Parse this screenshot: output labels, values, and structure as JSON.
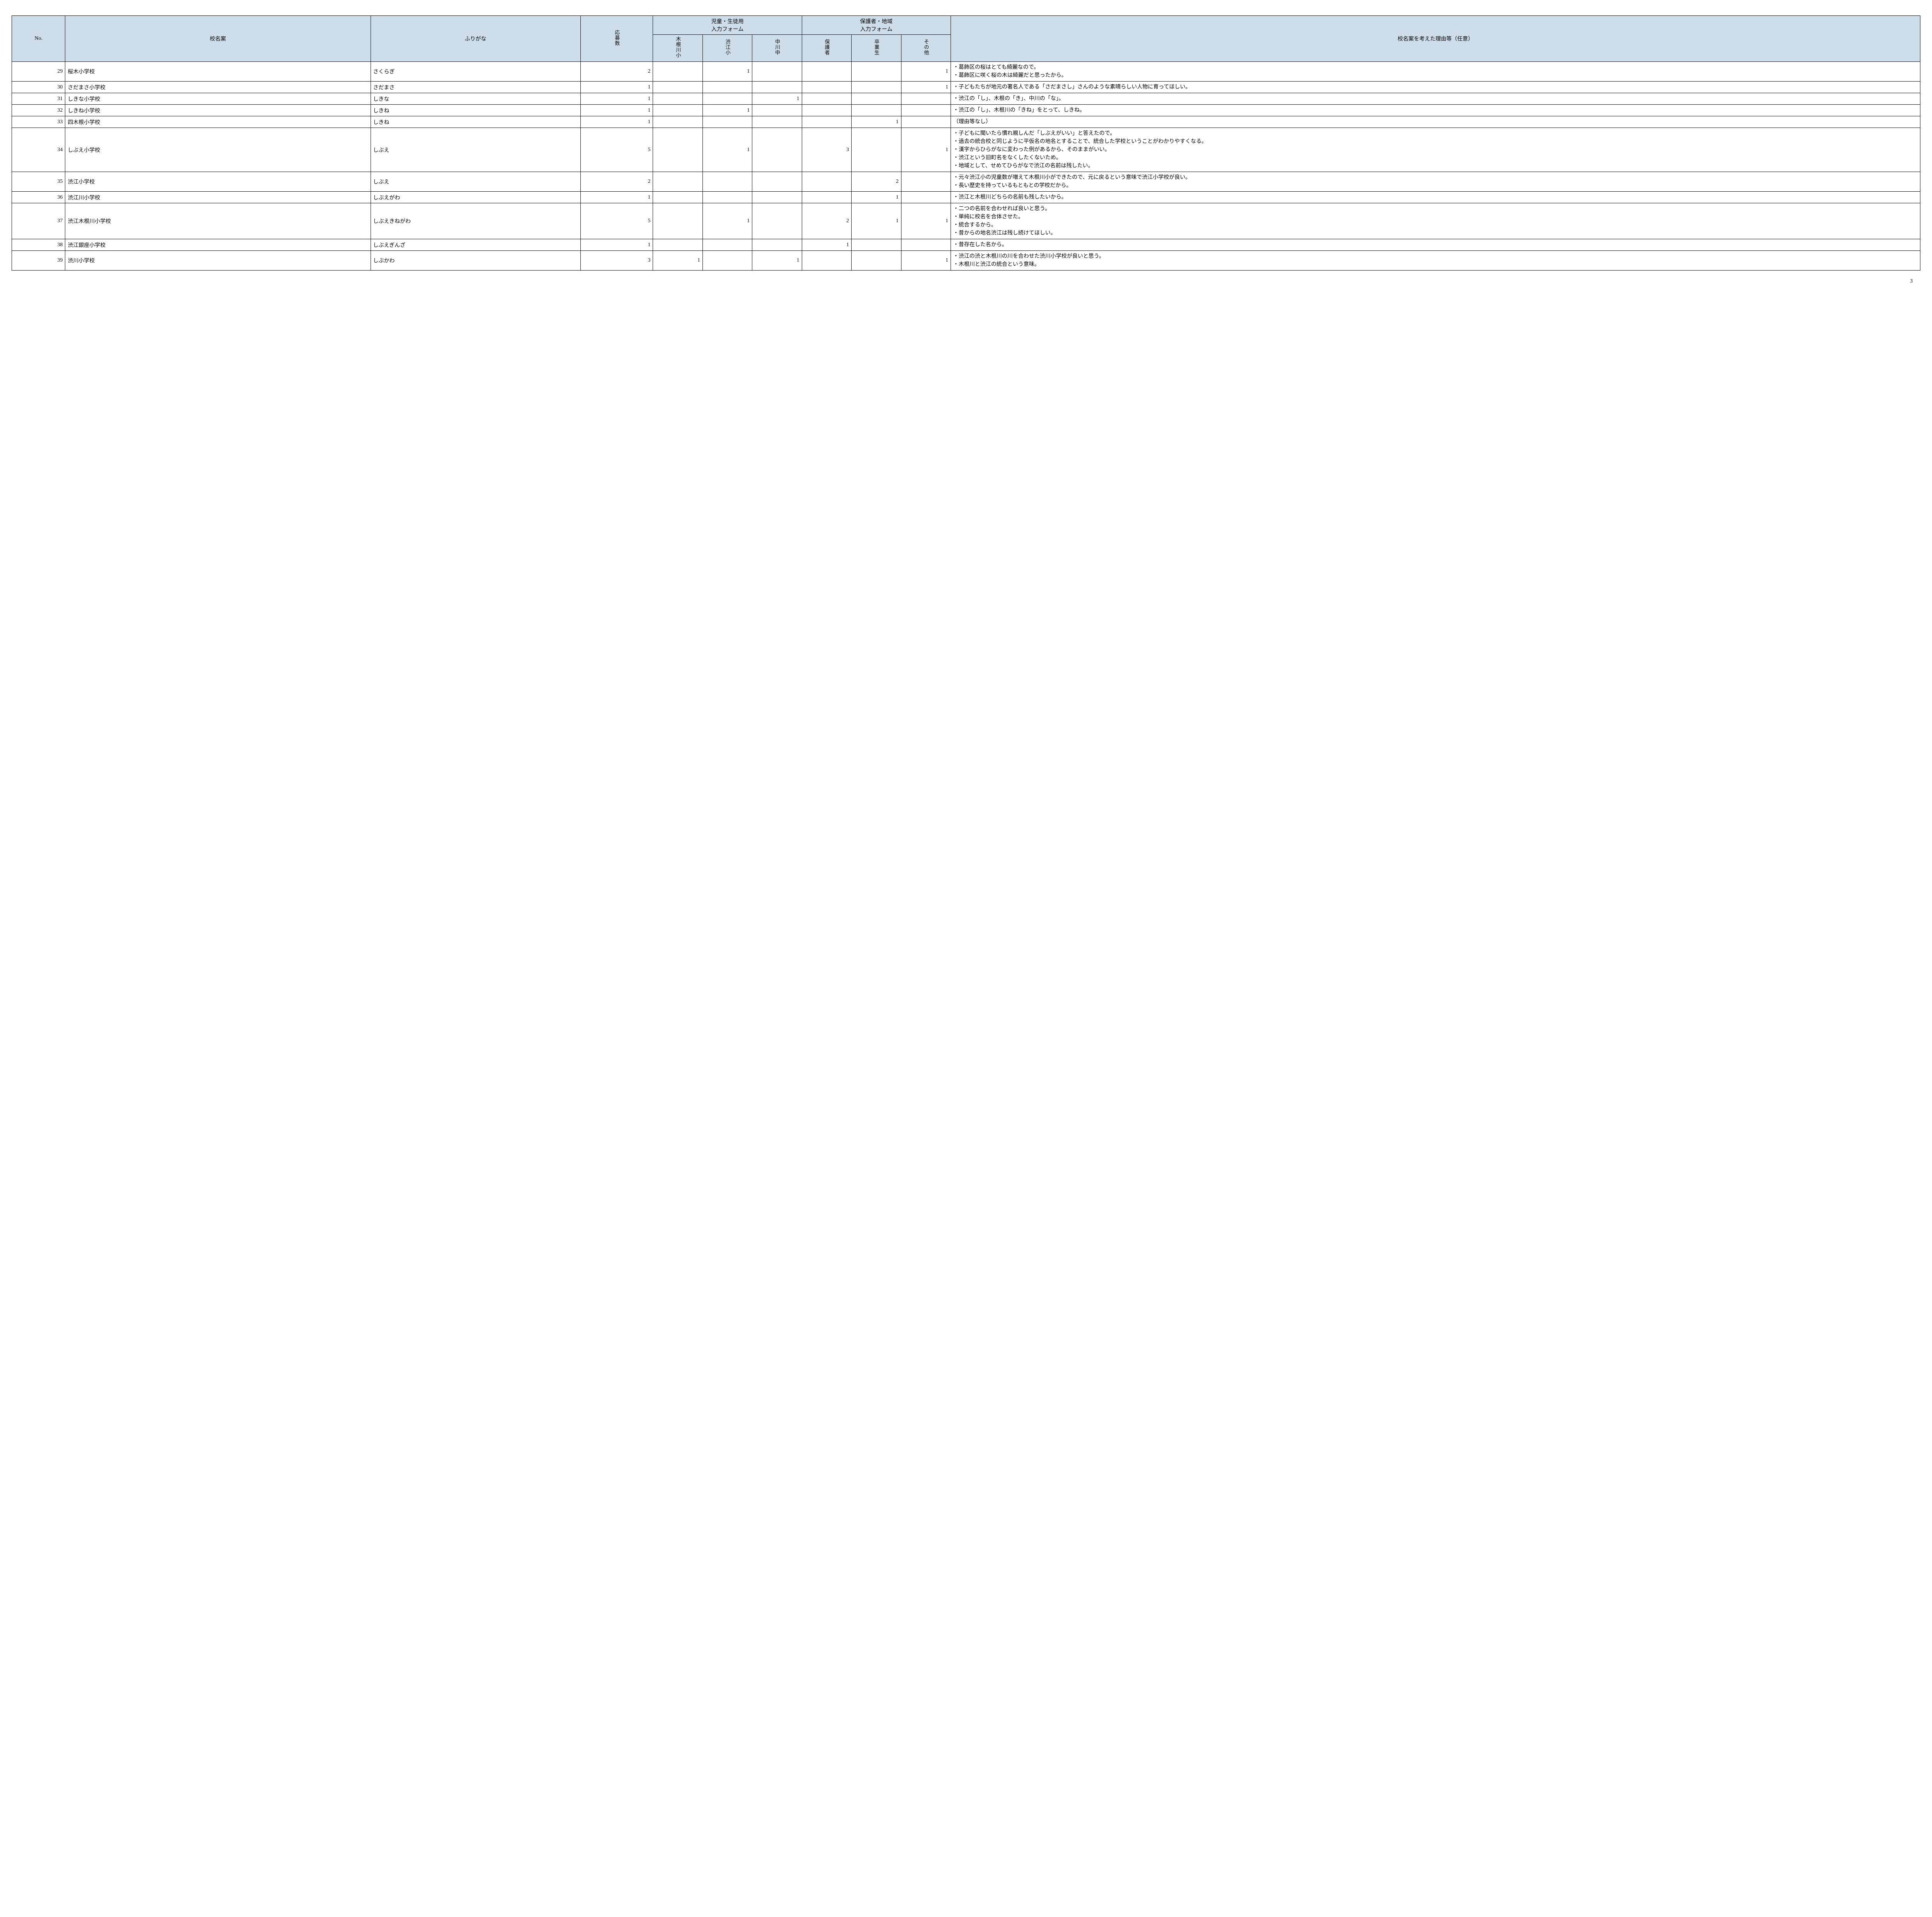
{
  "header": {
    "no": "No.",
    "name": "校名案",
    "furigana": "ふりがな",
    "oubosu": "応募数",
    "student_form": "児童・生徒用\n入力フォーム",
    "guardian_form": "保護者・地域\n入力フォーム",
    "sub_headers": {
      "kinegawa": "木根川小",
      "shibue": "渋江小",
      "nakagawa": "中川中",
      "hogosha": "保護者",
      "sotsugyo": "卒業生",
      "sonota": "その他"
    },
    "reason": "校名案を考えた理由等（任意）"
  },
  "rows": [
    {
      "no": 29,
      "name": "桜木小学校",
      "furi": "さくらぎ",
      "oubo": 2,
      "c1": "",
      "c2": 1,
      "c3": "",
      "c4": "",
      "c5": "",
      "c6": 1,
      "reason": "・葛飾区の桜はとても綺麗なので。\n・葛飾区に咲く桜の木は綺麗だと思ったから。"
    },
    {
      "no": 30,
      "name": "さだまさ小学校",
      "furi": "さだまさ",
      "oubo": 1,
      "c1": "",
      "c2": "",
      "c3": "",
      "c4": "",
      "c5": "",
      "c6": 1,
      "reason": "・子どもたちが地元の著名人である「さだまさし」さんのような素晴らしい人物に育ってほしい。"
    },
    {
      "no": 31,
      "name": "しきな小学校",
      "furi": "しきな",
      "oubo": 1,
      "c1": "",
      "c2": "",
      "c3": 1,
      "c4": "",
      "c5": "",
      "c6": "",
      "reason": "・渋江の「し」、木根の「き」、中川の「な」。"
    },
    {
      "no": 32,
      "name": "しきね小学校",
      "furi": "しきね",
      "oubo": 1,
      "c1": "",
      "c2": 1,
      "c3": "",
      "c4": "",
      "c5": "",
      "c6": "",
      "reason": "・渋江の「し」、木根川の「きね」をとって、しきね。"
    },
    {
      "no": 33,
      "name": "四木根小学校",
      "furi": "しきね",
      "oubo": 1,
      "c1": "",
      "c2": "",
      "c3": "",
      "c4": "",
      "c5": 1,
      "c6": "",
      "reason": "（理由等なし）"
    },
    {
      "no": 34,
      "name": "しぶえ小学校",
      "furi": "しぶえ",
      "oubo": 5,
      "c1": "",
      "c2": 1,
      "c3": "",
      "c4": 3,
      "c5": "",
      "c6": 1,
      "reason": "・子どもに聞いたら慣れ親しんだ「しぶえがいい」と答えたので。\n・過去の統合校と同じように平仮名の地名とすることで、統合した学校ということがわかりやすくなる。\n・漢字からひらがなに変わった例があるから、そのままがいい。\n・渋江という旧町名をなくしたくないため。\n・地域として、せめてひらがなで渋江の名前は残したい。"
    },
    {
      "no": 35,
      "name": "渋江小学校",
      "furi": "しぶえ",
      "oubo": 2,
      "c1": "",
      "c2": "",
      "c3": "",
      "c4": "",
      "c5": 2,
      "c6": "",
      "reason": "・元々渋江小の児童数が増えて木根川小ができたので、元に戻るという意味で渋江小学校が良い。\n・長い歴史を持っているもともとの学校だから。"
    },
    {
      "no": 36,
      "name": "渋江川小学校",
      "furi": "しぶえがわ",
      "oubo": 1,
      "c1": "",
      "c2": "",
      "c3": "",
      "c4": "",
      "c5": 1,
      "c6": "",
      "reason": "・渋江と木根川どちらの名前も残したいから。"
    },
    {
      "no": 37,
      "name": "渋江木根川小学校",
      "furi": "しぶえきねがわ",
      "oubo": 5,
      "c1": "",
      "c2": 1,
      "c3": "",
      "c4": 2,
      "c5": 1,
      "c6": 1,
      "reason": "・二つの名前を合わせれば良いと思う。\n・単純に校名を合体させた。\n・統合するから。\n・昔からの地名渋江は残し続けてほしい。"
    },
    {
      "no": 38,
      "name": "渋江銀座小学校",
      "furi": "しぶえぎんざ",
      "oubo": 1,
      "c1": "",
      "c2": "",
      "c3": "",
      "c4": 1,
      "c5": "",
      "c6": "",
      "reason": "・昔存在した名から。"
    },
    {
      "no": 39,
      "name": "渋川小学校",
      "furi": "しぶかわ",
      "oubo": 3,
      "c1": 1,
      "c2": "",
      "c3": 1,
      "c4": "",
      "c5": "",
      "c6": 1,
      "reason": "・渋江の渋と木根川の川を合わせた渋川小学校が良いと思う。\n・木根川と渋江の統合という意味。"
    }
  ],
  "page_number": "3",
  "colors": {
    "header_bg": "#cddde9",
    "border": "#000000",
    "text": "#000000",
    "page_bg": "#ffffff"
  }
}
